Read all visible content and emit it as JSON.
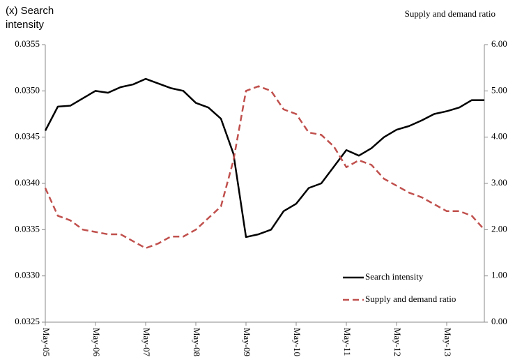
{
  "chart_data": {
    "type": "line",
    "y_label": "(x) Search intensity",
    "y2_label": "Supply and demand ratio",
    "categories": [
      "May-05",
      null,
      null,
      null,
      "May-06",
      null,
      null,
      null,
      "May-07",
      null,
      null,
      null,
      "May-08",
      null,
      null,
      null,
      "May-09",
      null,
      null,
      null,
      "May-10",
      null,
      null,
      null,
      "May-11",
      null,
      null,
      null,
      "May-12",
      null,
      null,
      null,
      "May-13",
      null,
      null,
      null
    ],
    "series": [
      {
        "name": "Search intensity",
        "color": "#000000",
        "dash": false,
        "values": [
          0.03457,
          0.03483,
          0.03484,
          0.03492,
          0.035,
          0.03498,
          0.03504,
          0.03507,
          0.03513,
          0.03508,
          0.03503,
          0.035,
          0.03487,
          0.03482,
          0.0347,
          0.03432,
          0.03342,
          0.03345,
          0.0335,
          0.0337,
          0.03378,
          0.03395,
          0.034,
          0.03418,
          0.03436,
          0.0343,
          0.03438,
          0.0345,
          0.03458,
          0.03462,
          0.03468,
          0.03475,
          0.03478,
          0.03482,
          0.0349,
          0.0349
        ]
      },
      {
        "name": "Supply and demand ratio",
        "color": "#c0504d",
        "dash": true,
        "axis": "y2",
        "values": [
          2.9,
          2.3,
          2.2,
          2.0,
          1.95,
          1.9,
          1.9,
          1.75,
          1.6,
          1.7,
          1.85,
          1.85,
          2.0,
          2.25,
          2.5,
          3.5,
          5.0,
          5.1,
          5.0,
          4.6,
          4.5,
          4.1,
          4.05,
          3.8,
          3.35,
          3.5,
          3.4,
          3.1,
          2.95,
          2.8,
          2.7,
          2.55,
          2.4,
          2.4,
          2.3,
          2.0
        ]
      }
    ],
    "ylim": [
      0.0325,
      0.0355
    ],
    "yticks": [
      {
        "value": 0.0325,
        "label": "0.0325"
      },
      {
        "value": 0.033,
        "label": "0.0330"
      },
      {
        "value": 0.0335,
        "label": "0.0335"
      },
      {
        "value": 0.034,
        "label": "0.0340"
      },
      {
        "value": 0.0345,
        "label": "0.0345"
      },
      {
        "value": 0.035,
        "label": "0.0350"
      },
      {
        "value": 0.0355,
        "label": "0.0355"
      }
    ],
    "y2lim": [
      0,
      6
    ],
    "y2ticks": [
      {
        "value": 0,
        "label": "0.00"
      },
      {
        "value": 1,
        "label": "1.00"
      },
      {
        "value": 2,
        "label": "2.00"
      },
      {
        "value": 3,
        "label": "3.00"
      },
      {
        "value": 4,
        "label": "4.00"
      },
      {
        "value": 5,
        "label": "5.00"
      },
      {
        "value": 6,
        "label": "6.00"
      }
    ],
    "grid": false,
    "legend": "lower right"
  }
}
